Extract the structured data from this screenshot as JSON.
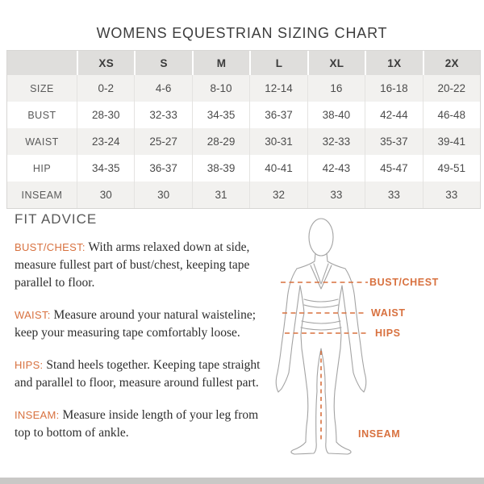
{
  "title": "WOMENS EQUESTRIAN SIZING CHART",
  "size_chart": {
    "columns": [
      "",
      "XS",
      "S",
      "M",
      "L",
      "XL",
      "1X",
      "2X"
    ],
    "rows": [
      {
        "label": "SIZE",
        "values": [
          "0-2",
          "4-6",
          "8-10",
          "12-14",
          "16",
          "16-18",
          "20-22"
        ]
      },
      {
        "label": "BUST",
        "values": [
          "28-30",
          "32-33",
          "34-35",
          "36-37",
          "38-40",
          "42-44",
          "46-48"
        ]
      },
      {
        "label": "WAIST",
        "values": [
          "23-24",
          "25-27",
          "28-29",
          "30-31",
          "32-33",
          "35-37",
          "39-41"
        ]
      },
      {
        "label": "HIP",
        "values": [
          "34-35",
          "36-37",
          "38-39",
          "40-41",
          "42-43",
          "45-47",
          "49-51"
        ]
      },
      {
        "label": "INSEAM",
        "values": [
          "30",
          "30",
          "31",
          "32",
          "33",
          "33",
          "33"
        ]
      }
    ]
  },
  "fit_advice": {
    "heading": "FIT ADVICE",
    "items": [
      {
        "label": "BUST/CHEST:",
        "text": "With arms relaxed down at side, measure fullest part of bust/chest, keeping tape parallel to floor."
      },
      {
        "label": "WAIST:",
        "text": "Measure around your natural waisteline; keep your measuring tape comfortably loose."
      },
      {
        "label": "HIPS:",
        "text": "Stand heels together. Keeping tape straight and parallel to floor, measure around fullest part."
      },
      {
        "label": "INSEAM:",
        "text": "Measure inside length of your leg from top to bottom of ankle."
      }
    ]
  },
  "diagram": {
    "labels": {
      "bust": "BUST/CHEST",
      "waist": "WAIST",
      "hips": "HIPS",
      "inseam": "INSEAM"
    },
    "accent_color": "#d8713f",
    "outline_color": "#a3a3a3"
  }
}
